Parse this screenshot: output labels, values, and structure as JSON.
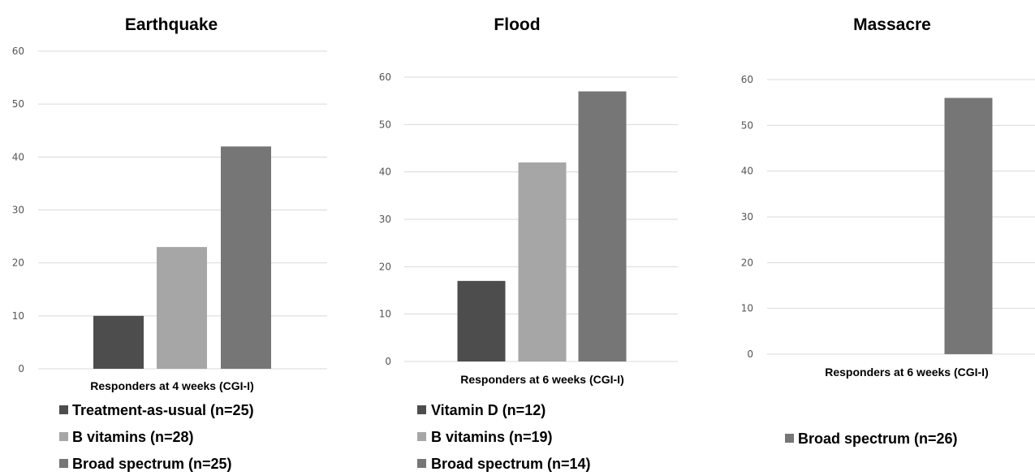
{
  "chart_data": [
    {
      "type": "bar",
      "title": "Earthquake",
      "xlabel": "Responders at 4 weeks (CGI-I)",
      "ylabel": "",
      "ylim": [
        0,
        60
      ],
      "yticks": [
        "0",
        "10",
        "20",
        "30",
        "40",
        "50",
        "60"
      ],
      "grid": true,
      "legend_position": "bottom",
      "series": [
        {
          "name": "Treatment-as-usual (n=25)",
          "color": "#4d4d4d",
          "values": [
            10
          ]
        },
        {
          "name": "B vitamins (n=28)",
          "color": "#a6a6a6",
          "values": [
            23
          ]
        },
        {
          "name": "Broad spectrum (n=25)",
          "color": "#767676",
          "values": [
            42
          ]
        }
      ]
    },
    {
      "type": "bar",
      "title": "Flood",
      "xlabel": "Responders at 6 weeks (CGI-I)",
      "ylabel": "",
      "ylim": [
        0,
        60
      ],
      "yticks": [
        "0",
        "10",
        "20",
        "30",
        "40",
        "50",
        "60"
      ],
      "grid": true,
      "legend_position": "bottom",
      "series": [
        {
          "name": "Vitamin D (n=12)",
          "color": "#4d4d4d",
          "values": [
            17
          ]
        },
        {
          "name": "B vitamins (n=19)",
          "color": "#a6a6a6",
          "values": [
            42
          ]
        },
        {
          "name": "Broad spectrum (n=14)",
          "color": "#767676",
          "values": [
            57
          ]
        }
      ]
    },
    {
      "type": "bar",
      "title": "Massacre",
      "xlabel": "Responders at 6 weeks (CGI-I)",
      "ylabel": "",
      "ylim": [
        0,
        60
      ],
      "yticks": [
        "0",
        "10",
        "20",
        "30",
        "40",
        "50",
        "60"
      ],
      "grid": true,
      "legend_position": "bottom",
      "series": [
        {
          "name": "Broad spectrum (n=26)",
          "color": "#767676",
          "values": [
            56
          ]
        }
      ]
    }
  ]
}
